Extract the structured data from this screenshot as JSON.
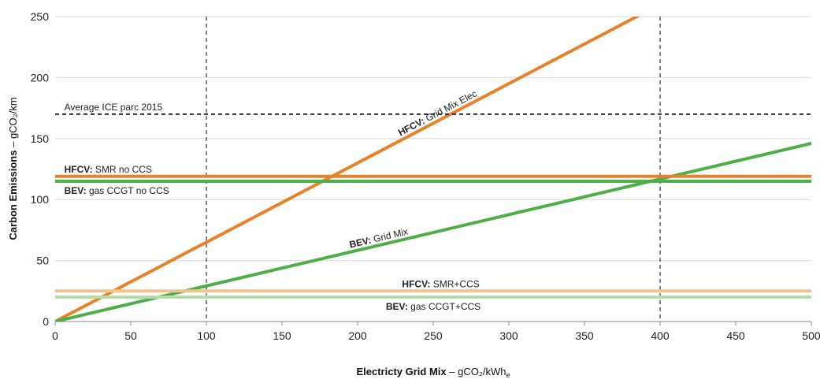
{
  "chart_data": {
    "type": "line",
    "xlabel": {
      "bold": "Electricty Grid Mix",
      "rest": " – gCO₂/kWh",
      "sub": "e"
    },
    "ylabel": {
      "bold": "Carbon Emissions",
      "rest": " – gCO₂/km"
    },
    "xlim": [
      0,
      500
    ],
    "ylim": [
      0,
      250
    ],
    "x_ticks": [
      0,
      50,
      100,
      150,
      200,
      250,
      300,
      350,
      400,
      450,
      500
    ],
    "y_ticks": [
      0,
      50,
      100,
      150,
      200,
      250
    ],
    "grid": "horizontal",
    "vertical_markers": [
      100,
      400
    ],
    "colors": {
      "orange": "#e8822a",
      "green": "#4caf48",
      "light_orange": "#f4c08e",
      "light_green": "#b6dcaa",
      "black": "#111111",
      "grey_dash": "#666666",
      "grid": "#d9d9d9"
    },
    "series": [
      {
        "key": "hfcv_grid",
        "x": [
          0,
          500
        ],
        "y": [
          0,
          325
        ],
        "color": "orange",
        "label_bold": "HFCV:",
        "label_rest": " Grid Mix Elec",
        "label_at": 0.51
      },
      {
        "key": "bev_grid",
        "x": [
          0,
          500
        ],
        "y": [
          0,
          146
        ],
        "color": "green",
        "label_bold": "BEV:",
        "label_rest": " Grid Mix",
        "label_at": 0.43
      },
      {
        "key": "avg_ice",
        "x": [
          0,
          500
        ],
        "y": [
          170,
          170
        ],
        "color": "black",
        "dashed": true,
        "label_bold": "",
        "label_rest": "Average ICE parc 2015",
        "label_at": 0.01
      },
      {
        "key": "hfcv_smr",
        "x": [
          0,
          500
        ],
        "y": [
          119,
          119
        ],
        "color": "orange",
        "label_bold": "HFCV:",
        "label_rest": " SMR no CCS",
        "label_at": 0.01
      },
      {
        "key": "bev_ccgt",
        "x": [
          0,
          500
        ],
        "y": [
          115,
          115
        ],
        "color": "green",
        "label_bold": "BEV:",
        "label_rest": " gas CCGT no CCS",
        "label_at": 0.01
      },
      {
        "key": "hfcv_smr_ccs",
        "x": [
          0,
          500
        ],
        "y": [
          25,
          25
        ],
        "color": "light_orange",
        "label_bold": "HFCV:",
        "label_rest": " SMR+CCS",
        "label_at": 0.51
      },
      {
        "key": "bev_ccgt_ccs",
        "x": [
          0,
          500
        ],
        "y": [
          20,
          20
        ],
        "color": "light_green",
        "label_bold": "BEV:",
        "label_rest": " gas CCGT+CCS",
        "label_at": 0.5
      }
    ]
  }
}
